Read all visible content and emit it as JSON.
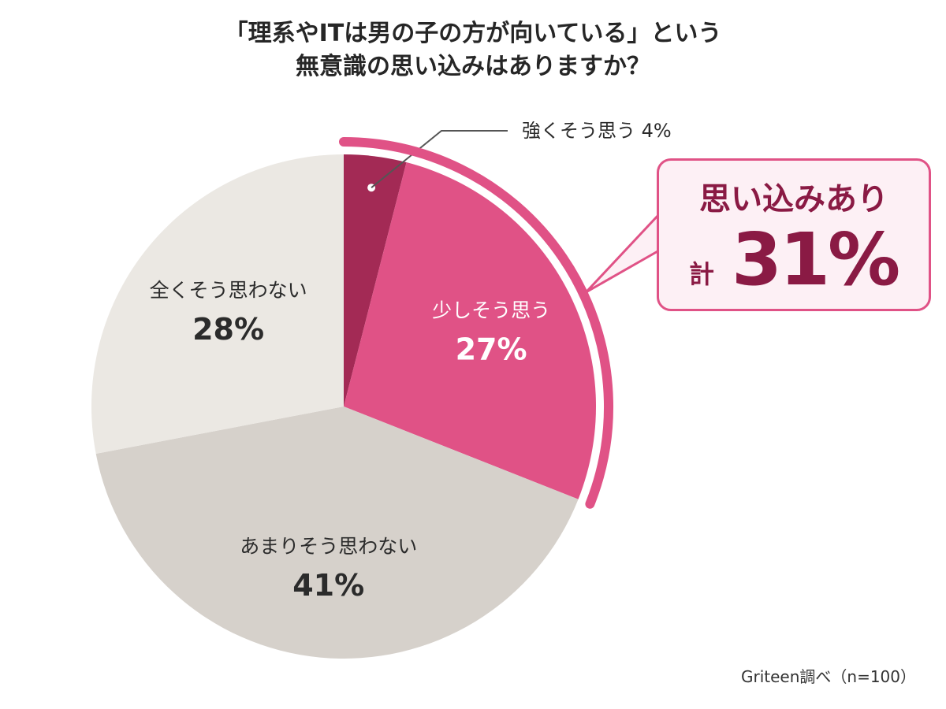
{
  "title": {
    "line1": "「理系やITは男の子の方が向いている」という",
    "line2": "無意識の思い込みはありますか？"
  },
  "chart_data": {
    "type": "pie",
    "start": "top",
    "direction": "clockwise",
    "categories": [
      "強くそう思う",
      "少しそう思う",
      "あまりそう思わない",
      "全くそう思わない"
    ],
    "values": [
      4,
      27,
      41,
      28
    ],
    "unit": "%",
    "value_labels": [
      "4%",
      "27%",
      "41%",
      "28%"
    ],
    "colors": [
      "#a32a55",
      "#e05286",
      "#d6d1cb",
      "#ebe8e3"
    ],
    "label_colors": [
      "#2b2b2b",
      "#ffffff",
      "#2b2b2b",
      "#2b2b2b"
    ],
    "outer_label_index": 0,
    "highlight": {
      "indices": [
        0,
        1
      ],
      "label": "思い込みあり",
      "total_prefix": "計",
      "total_value": "31%",
      "arc_color": "#e05286"
    }
  },
  "source": "Griteen調べ（n=100）"
}
